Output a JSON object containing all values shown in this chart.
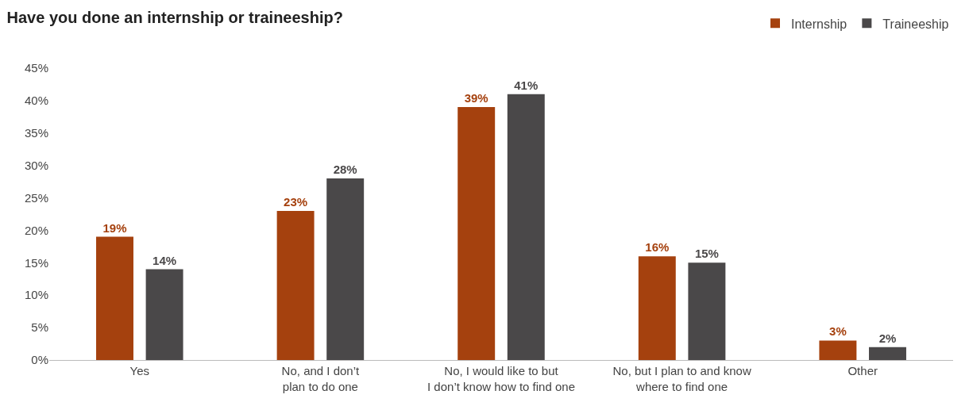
{
  "chart_data": {
    "type": "bar",
    "title": "Have you done an internship or traineeship?",
    "categories": [
      "Yes",
      "No, and I don’t\nplan to do one",
      "No, I would like to but\nI don’t know how to find one",
      "No, but I plan to and know\nwhere to find one",
      "Other"
    ],
    "series": [
      {
        "name": "Internship",
        "color": "#a5410e",
        "values": [
          19,
          23,
          39,
          16,
          3
        ],
        "value_labels": [
          "19%",
          "23%",
          "39%",
          "16%",
          "3%"
        ]
      },
      {
        "name": "Traineeship",
        "color": "#4a4849",
        "values": [
          14,
          28,
          41,
          15,
          2
        ],
        "value_labels": [
          "14%",
          "28%",
          "41%",
          "15%",
          "2%"
        ]
      }
    ],
    "ylim": [
      0,
      45
    ],
    "yticks": [
      {
        "value": 0,
        "label": "0%"
      },
      {
        "value": 5,
        "label": "5%"
      },
      {
        "value": 10,
        "label": "10%"
      },
      {
        "value": 15,
        "label": "15%"
      },
      {
        "value": 20,
        "label": "20%"
      },
      {
        "value": 25,
        "label": "25%"
      },
      {
        "value": 30,
        "label": "30%"
      },
      {
        "value": 35,
        "label": "35%"
      },
      {
        "value": 40,
        "label": "40%"
      },
      {
        "value": 45,
        "label": "45%"
      }
    ],
    "grid": false,
    "legend": "top right"
  }
}
